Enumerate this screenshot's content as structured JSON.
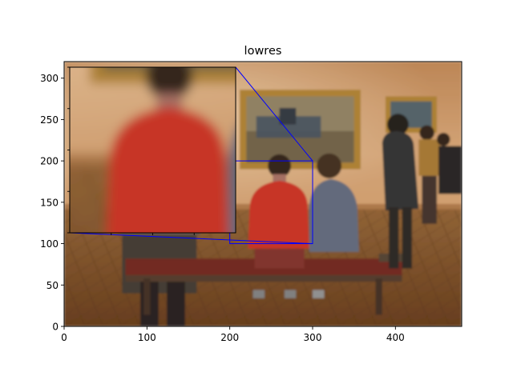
{
  "title": "lowres",
  "chart_data": {
    "type": "image",
    "title": "lowres",
    "xlabel": "",
    "ylabel": "",
    "xlim": [
      0,
      480
    ],
    "ylim": [
      0,
      320
    ],
    "xticks": [
      0,
      100,
      200,
      300,
      400
    ],
    "yticks": [
      0,
      50,
      100,
      150,
      200,
      250,
      300
    ],
    "grid": false,
    "inset": {
      "source_xlim": [
        200,
        300
      ],
      "source_ylim": [
        100,
        200
      ],
      "edge_color": "#0000ff",
      "description_colors": {
        "shirt": "#d43a2a",
        "hair": "#3a2a1c",
        "background": "#e8b890"
      }
    },
    "palette": {
      "wall": "#d6a070",
      "wall_light": "#efc9a0",
      "floor": "#8a5a2e",
      "bench_seat": "#7a2c24",
      "frame_gold": "#b88a3a",
      "painting": "#5a6a70",
      "red_shirt": "#d43a2a",
      "gray_jacket": "#6a7284",
      "dark_suit": "#3a3838"
    }
  }
}
